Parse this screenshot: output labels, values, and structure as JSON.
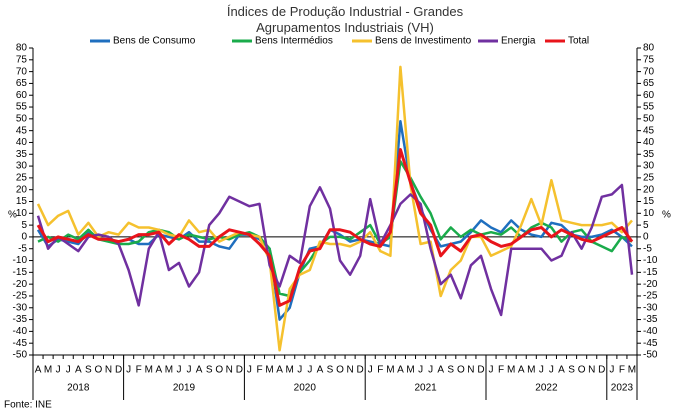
{
  "chart_data": {
    "type": "line",
    "title": "Índices de Produção Industrial - Grandes Agrupamentos Industriais (VH)",
    "y_unit": "%",
    "source": "Fonte: INE",
    "categories": [
      "A",
      "M",
      "J",
      "J",
      "A",
      "S",
      "O",
      "N",
      "D",
      "J",
      "F",
      "M",
      "A",
      "M",
      "J",
      "J",
      "A",
      "S",
      "O",
      "N",
      "D",
      "J",
      "F",
      "M",
      "A",
      "M",
      "J",
      "J",
      "A",
      "S",
      "O",
      "N",
      "D",
      "J",
      "F",
      "M",
      "A",
      "M",
      "J",
      "J",
      "A",
      "S",
      "O",
      "N",
      "D",
      "J",
      "F",
      "M",
      "A",
      "M",
      "J",
      "J",
      "A",
      "S",
      "O",
      "N",
      "D",
      "J",
      "F",
      "M"
    ],
    "year_groups": [
      {
        "label": "2018",
        "months": 9
      },
      {
        "label": "2019",
        "months": 12
      },
      {
        "label": "2020",
        "months": 12
      },
      {
        "label": "2021",
        "months": 12
      },
      {
        "label": "2022",
        "months": 12
      },
      {
        "label": "2023",
        "months": 3
      }
    ],
    "ylim": [
      -50,
      80
    ],
    "yticks": [
      -50,
      -45,
      -40,
      -35,
      -30,
      -25,
      -20,
      -15,
      -10,
      -5,
      0,
      5,
      10,
      15,
      20,
      25,
      30,
      35,
      40,
      45,
      50,
      55,
      60,
      65,
      70,
      75,
      80
    ],
    "grid": false,
    "series": [
      {
        "name": "Bens de Consumo",
        "color": "#1f6fbf",
        "values": [
          3,
          -4,
          -1,
          -2,
          -3,
          2,
          -1,
          -1,
          -2,
          -1,
          -3,
          -3,
          1,
          0,
          -1,
          2,
          -2,
          -2,
          -4,
          -5,
          1,
          1,
          -1,
          -5,
          -35,
          -30,
          -15,
          -5,
          -4,
          3,
          1,
          -2,
          -1,
          -2,
          -3,
          -4,
          49,
          23,
          12,
          3,
          -4,
          -3,
          -2,
          2,
          7,
          4,
          2,
          7,
          3,
          1,
          0,
          6,
          5,
          1,
          0,
          0,
          1,
          3,
          0,
          -4
        ]
      },
      {
        "name": "Bens Intermédios",
        "color": "#1aab4b",
        "values": [
          -2,
          0,
          -2,
          1,
          -1,
          3,
          -1,
          -2,
          -3,
          -3,
          -2,
          2,
          3,
          2,
          -1,
          1,
          0,
          -1,
          0,
          -1,
          1,
          2,
          0,
          -5,
          -24,
          -25,
          -15,
          -10,
          -3,
          0,
          0,
          -1,
          2,
          5,
          -3,
          0,
          32,
          25,
          17,
          10,
          -1,
          4,
          0,
          3,
          1,
          2,
          1,
          4,
          0,
          4,
          6,
          4,
          -2,
          2,
          3,
          -2,
          -4,
          -6,
          0,
          -2
        ]
      },
      {
        "name": "Bens de Investimento",
        "color": "#f5c12e",
        "values": [
          14,
          5,
          9,
          11,
          1,
          6,
          0,
          2,
          1,
          6,
          4,
          4,
          3,
          1,
          0,
          7,
          2,
          3,
          -2,
          0,
          2,
          1,
          0,
          -10,
          -48,
          -22,
          -16,
          -14,
          -2,
          -3,
          -3,
          -4,
          -2,
          2,
          -6,
          -8,
          72,
          22,
          -3,
          -2,
          -25,
          -14,
          -10,
          0,
          0,
          -8,
          -6,
          -4,
          5,
          16,
          5,
          24,
          7,
          6,
          5,
          5,
          5,
          6,
          2,
          7
        ]
      },
      {
        "name": "Energia",
        "color": "#7030a0",
        "values": [
          9,
          -5,
          0,
          -3,
          -6,
          0,
          1,
          0,
          -3,
          -14,
          -29,
          -5,
          2,
          -14,
          -11,
          -21,
          -15,
          5,
          10,
          17,
          15,
          13,
          14,
          -12,
          -21,
          -8,
          -11,
          13,
          21,
          12,
          -10,
          -16,
          -8,
          16,
          -3,
          5,
          14,
          18,
          14,
          -5,
          -20,
          -16,
          -26,
          -12,
          -8,
          -22,
          -33,
          -5,
          -5,
          -5,
          -5,
          -10,
          -8,
          2,
          -5,
          4,
          17,
          18,
          22,
          -16
        ]
      },
      {
        "name": "Total",
        "color": "#e8141b",
        "values": [
          5,
          -2,
          0,
          -1,
          -2,
          1,
          -1,
          -1,
          -2,
          -1,
          1,
          1,
          2,
          -3,
          1,
          -1,
          -4,
          -4,
          0,
          3,
          2,
          1,
          -3,
          -8,
          -29,
          -27,
          -13,
          -6,
          -5,
          3,
          3,
          2,
          -1,
          -3,
          -4,
          2,
          37,
          23,
          10,
          5,
          -8,
          -3,
          -6,
          0,
          1,
          -2,
          -4,
          -3,
          0,
          3,
          4,
          0,
          3,
          1,
          -1,
          -2,
          0,
          2,
          4,
          -2
        ]
      }
    ]
  }
}
